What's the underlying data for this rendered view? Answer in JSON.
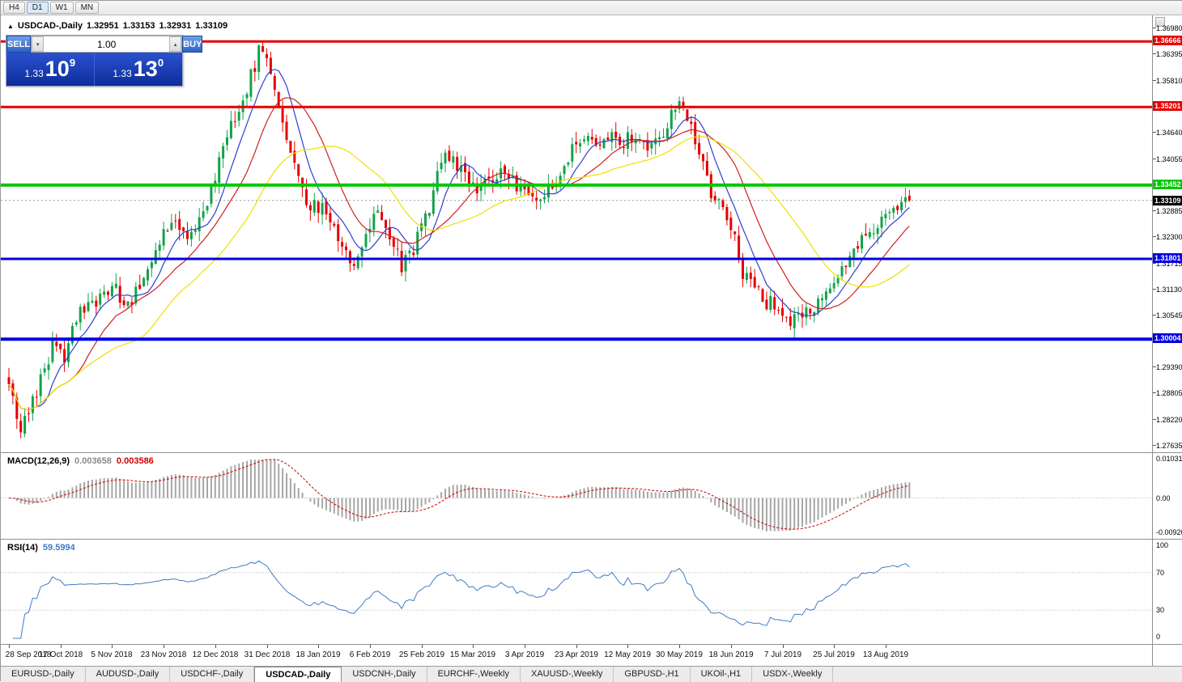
{
  "toolbar": {
    "timeframes": [
      "H4",
      "D1",
      "W1",
      "MN"
    ],
    "active_timeframe": "D1"
  },
  "icons": {
    "spinner_down": "▾",
    "spinner_up": "▴",
    "ohlc_marker": "▲"
  },
  "chart_header": {
    "title": "USDCAD-,Daily",
    "open": "1.32951",
    "high": "1.33153",
    "low": "1.32931",
    "close": "1.33109"
  },
  "trade_panel": {
    "sell_label": "SELL",
    "buy_label": "BUY",
    "volume_value": "1.00",
    "sell_price": {
      "main": "1.33",
      "big": "10",
      "sup": "9"
    },
    "buy_price": {
      "main": "1.33",
      "big": "13",
      "sup": "0"
    }
  },
  "price_axis_ticks": [
    "1.36980",
    "1.36395",
    "1.35810",
    "1.34640",
    "1.34055",
    "1.32885",
    "1.32300",
    "1.31715",
    "1.31130",
    "1.30545",
    "1.29390",
    "1.28805",
    "1.28220",
    "1.27635"
  ],
  "levels": [
    {
      "label": "1.36666",
      "value": 1.36666,
      "color": "#e60000",
      "thickness": 3
    },
    {
      "label": "1.35201",
      "value": 1.35201,
      "color": "#e60000",
      "thickness": 3
    },
    {
      "label": "1.33452",
      "value": 1.33452,
      "color": "#00c800",
      "thickness": 4
    },
    {
      "label": "1.31801",
      "value": 1.31801,
      "color": "#0000e1",
      "thickness": 3
    },
    {
      "label": "1.30004",
      "value": 1.30004,
      "color": "#0000e1",
      "thickness": 4
    }
  ],
  "current_price": {
    "label": "1.33109",
    "value": 1.33109,
    "bg": "#000000"
  },
  "macd_panel": {
    "label": "MACD(12,26,9)",
    "value1": "0.003658",
    "value2": "0.003586",
    "axis": {
      "top": "0.010311",
      "zero": "0.00",
      "bottom": "-0.00920"
    },
    "axis_top_value": 0.010311,
    "axis_bottom_value": -0.0092
  },
  "rsi_panel": {
    "label": "RSI(14)",
    "value": "59.5994",
    "axis": [
      "100",
      "70",
      "30",
      "0"
    ],
    "guide_levels": [
      70,
      30
    ]
  },
  "date_axis": {
    "labels": [
      "28 Sep 2018",
      "17 Oct 2018",
      "5 Nov 2018",
      "23 Nov 2018",
      "12 Dec 2018",
      "31 Dec 2018",
      "18 Jan 2019",
      "6 Feb 2019",
      "25 Feb 2019",
      "15 Mar 2019",
      "3 Apr 2019",
      "23 Apr 2019",
      "12 May 2019",
      "30 May 2019",
      "18 Jun 2019",
      "7 Jul 2019",
      "25 Jul 2019",
      "13 Aug 2019"
    ],
    "day_indices": [
      0,
      13,
      26,
      39,
      52,
      65,
      78,
      91,
      104,
      117,
      130,
      143,
      156,
      169,
      182,
      195,
      208,
      221
    ]
  },
  "tabs": [
    {
      "label": "EURUSD-,Daily",
      "active": false
    },
    {
      "label": "AUDUSD-,Daily",
      "active": false
    },
    {
      "label": "USDCHF-,Daily",
      "active": false
    },
    {
      "label": "USDCAD-,Daily",
      "active": true
    },
    {
      "label": "USDCNH-,Daily",
      "active": false
    },
    {
      "label": "EURCHF-,Weekly",
      "active": false
    },
    {
      "label": "XAUUSD-,Weekly",
      "active": false
    },
    {
      "label": "GBPUSD-,H1",
      "active": false
    },
    {
      "label": "UKOil-,H1",
      "active": false
    },
    {
      "label": "USDX-,Weekly",
      "active": false
    }
  ],
  "chart_data": {
    "type": "candlestick",
    "symbol": "USDCAD",
    "timeframe": "Daily",
    "visible_range": {
      "price_min": 1.27635,
      "price_max": 1.3698,
      "date_start": "28 Sep 2018",
      "date_end": "20 Aug 2019"
    },
    "num_candles": 228,
    "last_close": 1.33109,
    "up_color": "#13a24b",
    "down_color": "#e60000",
    "price_waypoints": [
      [
        0,
        1.2915
      ],
      [
        3,
        1.28
      ],
      [
        7,
        1.288
      ],
      [
        11,
        1.2985
      ],
      [
        14,
        1.2955
      ],
      [
        18,
        1.307
      ],
      [
        22,
        1.309
      ],
      [
        26,
        1.312
      ],
      [
        30,
        1.307
      ],
      [
        34,
        1.315
      ],
      [
        38,
        1.322
      ],
      [
        42,
        1.327
      ],
      [
        46,
        1.323
      ],
      [
        50,
        1.331
      ],
      [
        54,
        1.343
      ],
      [
        58,
        1.352
      ],
      [
        61,
        1.359
      ],
      [
        63,
        1.364
      ],
      [
        66,
        1.36
      ],
      [
        69,
        1.349
      ],
      [
        72,
        1.34
      ],
      [
        75,
        1.329
      ],
      [
        78,
        1.33
      ],
      [
        81,
        1.327
      ],
      [
        84,
        1.322
      ],
      [
        87,
        1.315
      ],
      [
        90,
        1.324
      ],
      [
        93,
        1.329
      ],
      [
        96,
        1.324
      ],
      [
        99,
        1.316
      ],
      [
        102,
        1.32
      ],
      [
        106,
        1.33
      ],
      [
        109,
        1.341
      ],
      [
        112,
        1.34
      ],
      [
        115,
        1.336
      ],
      [
        118,
        1.333
      ],
      [
        121,
        1.335
      ],
      [
        124,
        1.337
      ],
      [
        127,
        1.335
      ],
      [
        130,
        1.3345
      ],
      [
        133,
        1.331
      ],
      [
        136,
        1.334
      ],
      [
        139,
        1.337
      ],
      [
        142,
        1.342
      ],
      [
        145,
        1.345
      ],
      [
        148,
        1.344
      ],
      [
        151,
        1.346
      ],
      [
        154,
        1.344
      ],
      [
        157,
        1.345
      ],
      [
        160,
        1.3425
      ],
      [
        163,
        1.344
      ],
      [
        166,
        1.348
      ],
      [
        169,
        1.3545
      ],
      [
        171,
        1.35
      ],
      [
        174,
        1.342
      ],
      [
        177,
        1.333
      ],
      [
        179,
        1.331
      ],
      [
        182,
        1.326
      ],
      [
        185,
        1.315
      ],
      [
        188,
        1.311
      ],
      [
        191,
        1.3085
      ],
      [
        194,
        1.307
      ],
      [
        197,
        1.3035
      ],
      [
        200,
        1.305
      ],
      [
        203,
        1.307
      ],
      [
        206,
        1.31
      ],
      [
        209,
        1.314
      ],
      [
        212,
        1.318
      ],
      [
        215,
        1.322
      ],
      [
        218,
        1.3255
      ],
      [
        221,
        1.3285
      ],
      [
        224,
        1.3305
      ],
      [
        227,
        1.3311
      ]
    ],
    "moving_averages": [
      {
        "name": "fast",
        "period": 8,
        "color": "#2d3fd1"
      },
      {
        "name": "medium",
        "period": 17,
        "color": "#d02020"
      },
      {
        "name": "slow",
        "period": 34,
        "color": "#f0e000"
      }
    ],
    "macd": {
      "fast": 12,
      "slow": 26,
      "signal": 9,
      "histogram_color": "#a6a6a6",
      "signal_color": "#cc0000"
    },
    "rsi": {
      "period": 14,
      "color": "#3f7cc4"
    }
  }
}
